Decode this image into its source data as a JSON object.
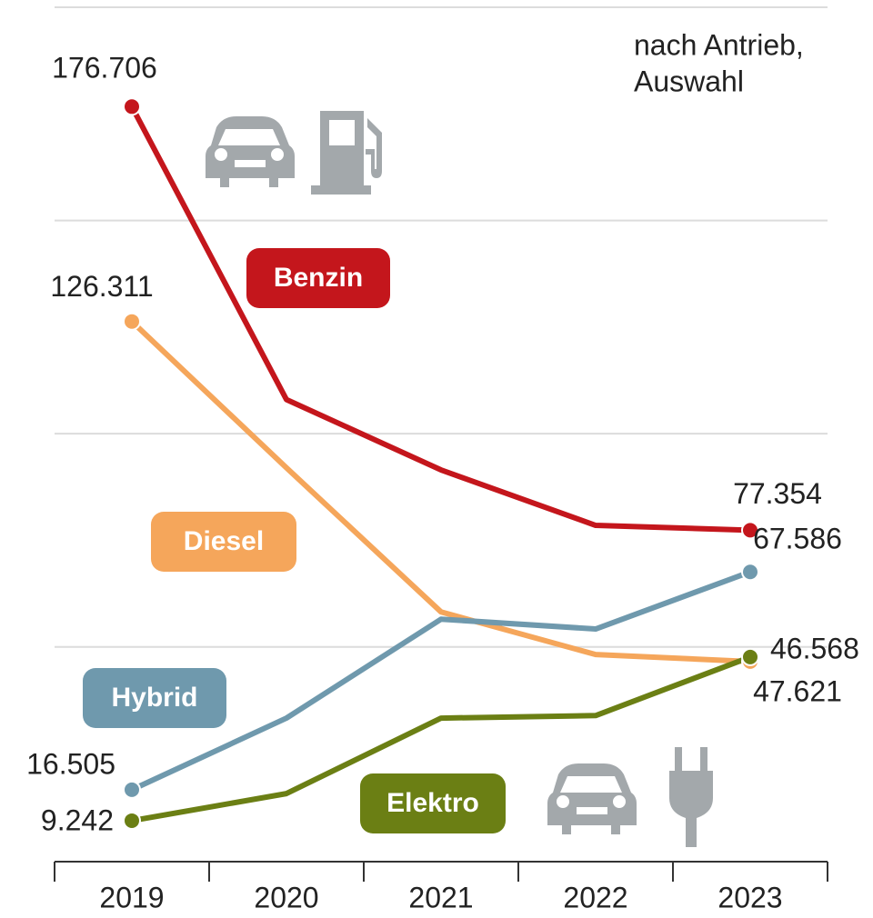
{
  "chart_data": {
    "type": "line",
    "annotation": [
      "nach Antrieb,",
      "Auswahl"
    ],
    "categories": [
      "2019",
      "2020",
      "2021",
      "2022",
      "2023"
    ],
    "series": [
      {
        "name": "Benzin",
        "color": "#c4161c",
        "values": [
          176706,
          108000,
          91500,
          78500,
          77354
        ],
        "value_labels": [
          "176.706",
          null,
          null,
          null,
          "77.354"
        ]
      },
      {
        "name": "Diesel",
        "color": "#f5a65b",
        "values": [
          126311,
          92000,
          58200,
          48200,
          46568
        ],
        "value_labels": [
          "126.311",
          null,
          null,
          null,
          "46.568"
        ]
      },
      {
        "name": "Hybrid",
        "color": "#6f99ad",
        "values": [
          16505,
          33300,
          56500,
          54200,
          67586
        ],
        "value_labels": [
          "16.505",
          null,
          null,
          null,
          "67.586"
        ]
      },
      {
        "name": "Elektro",
        "color": "#6b7f14",
        "values": [
          9242,
          15600,
          33300,
          33900,
          47621
        ],
        "value_labels": [
          "9.242",
          null,
          null,
          null,
          "47.621"
        ]
      }
    ],
    "ylim": [
      0,
      200000
    ],
    "yticks": [
      50000,
      100000,
      150000,
      200000
    ],
    "grid": true
  }
}
